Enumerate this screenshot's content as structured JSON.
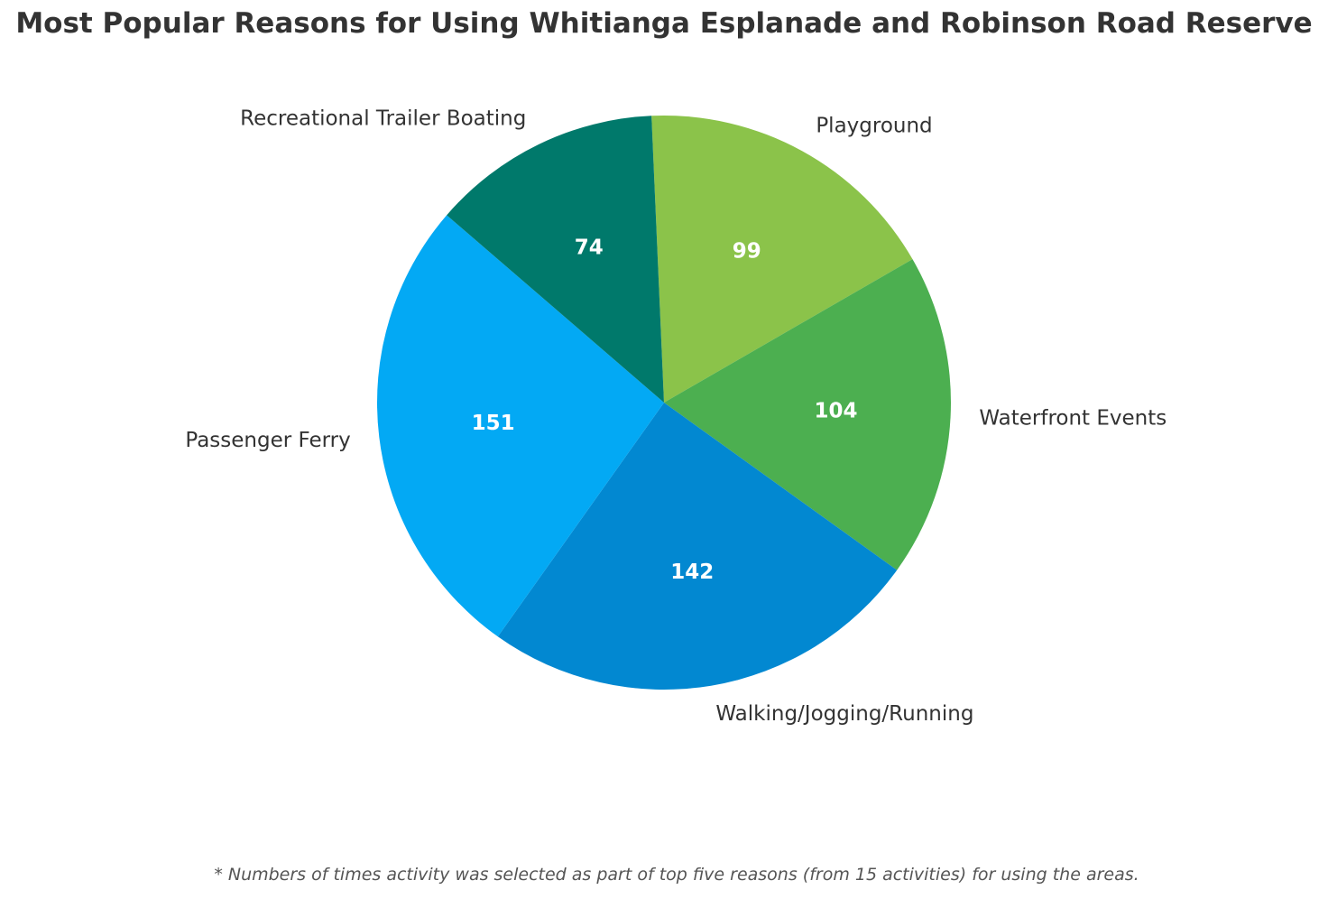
{
  "chart_data": {
    "type": "pie",
    "title": "Most Popular Reasons for Using Whitianga Esplanade and Robinson Road Reserve",
    "footnote": "* Numbers of times activity was selected as part of top five reasons (from 15 activities) for using the areas.",
    "slices": [
      {
        "label": "Playground",
        "value": 99,
        "color": "#8BC34A"
      },
      {
        "label": "Waterfront Events",
        "value": 104,
        "color": "#4CAF50"
      },
      {
        "label": "Walking/Jogging/Running",
        "value": 142,
        "color": "#0288D1"
      },
      {
        "label": "Passenger Ferry",
        "value": 151,
        "color": "#03A9F4"
      },
      {
        "label": "Recreational Trailer Boating",
        "value": 74,
        "color": "#00796B"
      }
    ],
    "value_label_color": "#ffffff"
  }
}
